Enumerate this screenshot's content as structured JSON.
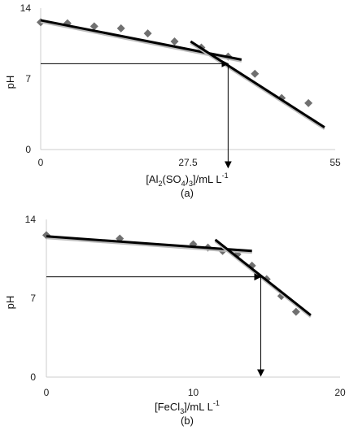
{
  "chart_data": [
    {
      "type": "scatter",
      "panel_label": "(a)",
      "xlabel_parts": {
        "pre": "[Al",
        "sub1": "2",
        "mid": "(SO",
        "sub2": "4",
        "close": ")",
        "sub3": "3",
        "post": "]/mL L",
        "sup": "-1"
      },
      "ylabel": "pH",
      "xlim": [
        0,
        55
      ],
      "ylim": [
        0,
        14
      ],
      "xticks": [
        0,
        27.5,
        55
      ],
      "yticks": [
        0,
        7,
        14
      ],
      "xtick_labels": [
        "0",
        "27.5",
        "55"
      ],
      "ytick_labels": [
        "0",
        "7",
        "14"
      ],
      "grid": false,
      "series": [
        {
          "marker": "diamond",
          "color": "#707070",
          "x": [
            0,
            5,
            10,
            15,
            20,
            25,
            30,
            35,
            40,
            45,
            50
          ],
          "y": [
            12.6,
            12.5,
            12.2,
            12.0,
            11.5,
            10.7,
            10.1,
            9.2,
            7.5,
            5.1,
            4.6
          ]
        }
      ],
      "trend_lines": [
        {
          "x": [
            0,
            37.5
          ],
          "y": [
            12.8,
            8.9
          ]
        },
        {
          "x": [
            28,
            53
          ],
          "y": [
            10.7,
            2.2
          ]
        }
      ],
      "annotation_arrows": [
        {
          "from": [
            0,
            8.5
          ],
          "to": [
            35,
            8.5
          ]
        },
        {
          "from": [
            35,
            8.5
          ],
          "to": [
            35,
            -1.8
          ]
        }
      ]
    },
    {
      "type": "scatter",
      "panel_label": "(b)",
      "xlabel_parts": {
        "pre": "[FeCl",
        "sub1": "3",
        "post": "]/mL L",
        "sup": "-1"
      },
      "ylabel": "pH",
      "xlim": [
        0,
        20
      ],
      "ylim": [
        0,
        14
      ],
      "xticks": [
        0,
        10,
        20
      ],
      "yticks": [
        0,
        7,
        14
      ],
      "xtick_labels": [
        "0",
        "10",
        "20"
      ],
      "ytick_labels": [
        "0",
        "7",
        "14"
      ],
      "grid": false,
      "series": [
        {
          "marker": "diamond",
          "color": "#707070",
          "x": [
            0,
            5,
            10,
            11,
            12,
            13,
            14,
            15,
            16,
            17
          ],
          "y": [
            12.6,
            12.3,
            11.8,
            11.5,
            11.2,
            10.9,
            9.9,
            8.7,
            7.2,
            5.8
          ]
        }
      ],
      "trend_lines": [
        {
          "x": [
            0,
            14
          ],
          "y": [
            12.5,
            11.2
          ]
        },
        {
          "x": [
            11.5,
            18
          ],
          "y": [
            12.2,
            5.5
          ]
        }
      ],
      "annotation_arrows": [
        {
          "from": [
            0,
            8.9
          ],
          "to": [
            14.6,
            8.9
          ]
        },
        {
          "from": [
            14.6,
            8.9
          ],
          "to": [
            14.6,
            0.1
          ]
        }
      ]
    }
  ]
}
